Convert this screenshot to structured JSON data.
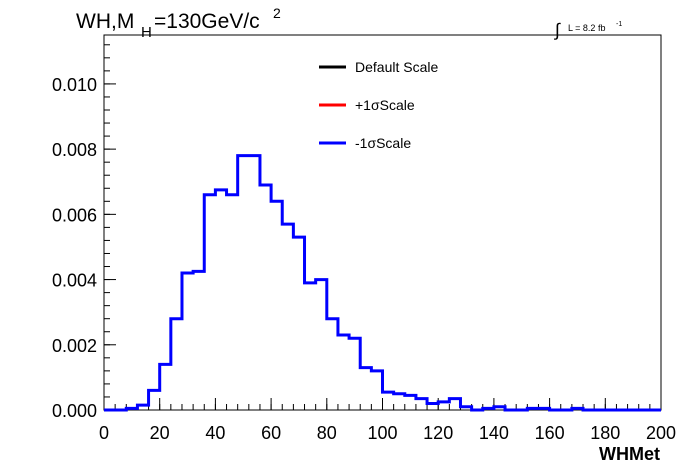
{
  "chart_data": {
    "type": "histogram",
    "title_main": "WH,M",
    "title_sub": "H",
    "title_rest": "=130GeV/c",
    "title_sup": "2",
    "lumi": {
      "integral": "∫",
      "text": "L = 8.2 fb",
      "sup": "-1"
    },
    "xlabel": "WHMet",
    "xlim": [
      0,
      200
    ],
    "ylim": [
      0,
      0.0115
    ],
    "x_ticks": [
      0,
      20,
      40,
      60,
      80,
      100,
      120,
      140,
      160,
      180,
      200
    ],
    "x_tick_labels": [
      "0",
      "20",
      "40",
      "60",
      "80",
      "100",
      "120",
      "140",
      "160",
      "180",
      "200"
    ],
    "y_ticks": [
      0,
      0.002,
      0.004,
      0.006,
      0.008,
      0.01
    ],
    "y_tick_labels": [
      "0.000",
      "0.002",
      "0.004",
      "0.006",
      "0.008",
      "0.010"
    ],
    "legend": [
      {
        "label": "Default Scale",
        "color": "#000000"
      },
      {
        "label": "+1σScale",
        "color": "#ff0000"
      },
      {
        "label": "-1σScale",
        "color": "#0000ff"
      }
    ],
    "bin_edges": [
      0,
      4,
      8,
      12,
      16,
      20,
      24,
      28,
      32,
      36,
      40,
      44,
      48,
      52,
      56,
      60,
      64,
      68,
      72,
      76,
      80,
      84,
      88,
      92,
      96,
      100,
      104,
      108,
      112,
      116,
      120,
      124,
      128,
      132,
      136,
      140,
      144,
      148,
      152,
      156,
      160,
      164,
      168,
      172,
      176,
      180,
      184,
      188,
      192,
      196,
      200
    ],
    "series": [
      {
        "name": "-1σScale",
        "color": "#0000ff",
        "values": [
          0.0,
          0.0,
          5e-05,
          0.00015,
          0.0006,
          0.0014,
          0.0028,
          0.0042,
          0.00425,
          0.0066,
          0.00675,
          0.0066,
          0.0078,
          0.0078,
          0.0069,
          0.0064,
          0.0057,
          0.0053,
          0.0039,
          0.004,
          0.0028,
          0.0023,
          0.0022,
          0.0013,
          0.0012,
          0.00055,
          0.0005,
          0.00045,
          0.00035,
          0.0002,
          0.00025,
          0.00035,
          0.0001,
          0.0,
          5e-05,
          0.0001,
          0.0,
          0.0,
          5e-05,
          5e-05,
          0.0,
          0.0,
          5e-05,
          0.0,
          0.0,
          0.0,
          0.0,
          0.0,
          0.0,
          0.0
        ]
      }
    ]
  }
}
